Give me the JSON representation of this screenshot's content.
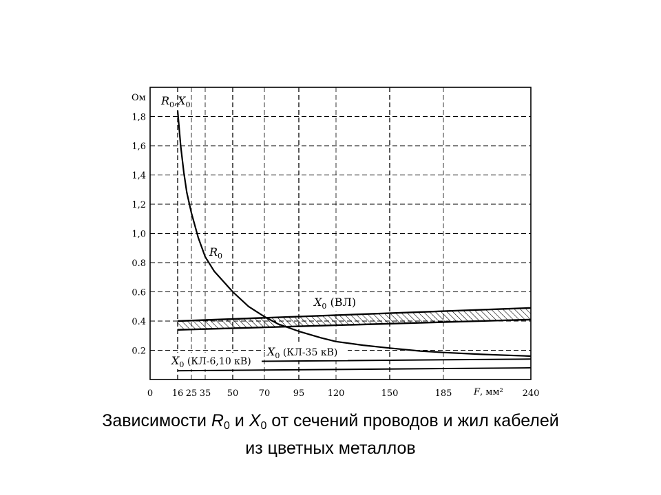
{
  "chart_data": {
    "type": "line",
    "y_unit": "Ом",
    "y_title": {
      "var1": "R",
      "sub1": "0",
      "sep": ",",
      "var2": "X",
      "sub2": "0"
    },
    "x_unit": {
      "var": "F",
      "unit": ", мм²"
    },
    "x_ticks": [
      "0",
      "16",
      "25",
      "35",
      "50",
      "70",
      "95",
      "120",
      "150",
      "185",
      "240"
    ],
    "y_ticks": [
      "0.2",
      "0.4",
      "0.6",
      "0.8",
      "1,0",
      "1,2",
      "1,4",
      "1,6",
      "1,8"
    ],
    "y_tick_values": [
      0.2,
      0.4,
      0.6,
      0.8,
      1.0,
      1.2,
      1.4,
      1.6,
      1.8
    ],
    "x_ticks_major": [
      "0",
      "16",
      "50",
      "95",
      "150",
      "240"
    ],
    "ylim": [
      0,
      1.95
    ],
    "grid": true,
    "series": [
      {
        "name": "R",
        "label": {
          "var": "R",
          "sub": "0",
          "text": ""
        },
        "style": "curve",
        "points": [
          [
            16,
            1.84
          ],
          [
            18,
            1.6
          ],
          [
            20,
            1.42
          ],
          [
            22,
            1.28
          ],
          [
            25,
            1.14
          ],
          [
            30,
            0.97
          ],
          [
            35,
            0.84
          ],
          [
            40,
            0.74
          ],
          [
            45,
            0.67
          ],
          [
            50,
            0.6
          ],
          [
            60,
            0.5
          ],
          [
            70,
            0.43
          ],
          [
            80,
            0.38
          ],
          [
            95,
            0.33
          ],
          [
            110,
            0.285
          ],
          [
            120,
            0.26
          ],
          [
            135,
            0.235
          ],
          [
            150,
            0.215
          ],
          [
            170,
            0.195
          ],
          [
            185,
            0.185
          ],
          [
            210,
            0.172
          ],
          [
            240,
            0.16
          ]
        ]
      },
      {
        "name": "X (ВЛ)",
        "label": {
          "var": "X",
          "sub": "0",
          "text": " (ВЛ)"
        },
        "style": "band",
        "upper": [
          [
            16,
            0.4
          ],
          [
            240,
            0.49
          ]
        ],
        "lower": [
          [
            16,
            0.34
          ],
          [
            240,
            0.41
          ]
        ]
      },
      {
        "name": "X (КЛ-35 кВ)",
        "label": {
          "var": "X",
          "sub": "0",
          "text": " (КЛ-35 кВ)"
        },
        "style": "line",
        "points": [
          [
            16,
            0.12
          ],
          [
            240,
            0.14
          ]
        ]
      },
      {
        "name": "X (КЛ-6,10 кВ)",
        "label": {
          "var": "X",
          "sub": "0",
          "text": " (КЛ-6,10 кВ)"
        },
        "style": "line",
        "points": [
          [
            16,
            0.06
          ],
          [
            240,
            0.08
          ]
        ]
      }
    ]
  },
  "caption": {
    "line1_pre": "Зависимости ",
    "var1": "R",
    "sub1": "0",
    "mid": " и ",
    "var2": "X",
    "sub2": "0",
    "line1_post": " от сечений проводов и жил кабелей",
    "line2": "из цветных металлов"
  }
}
